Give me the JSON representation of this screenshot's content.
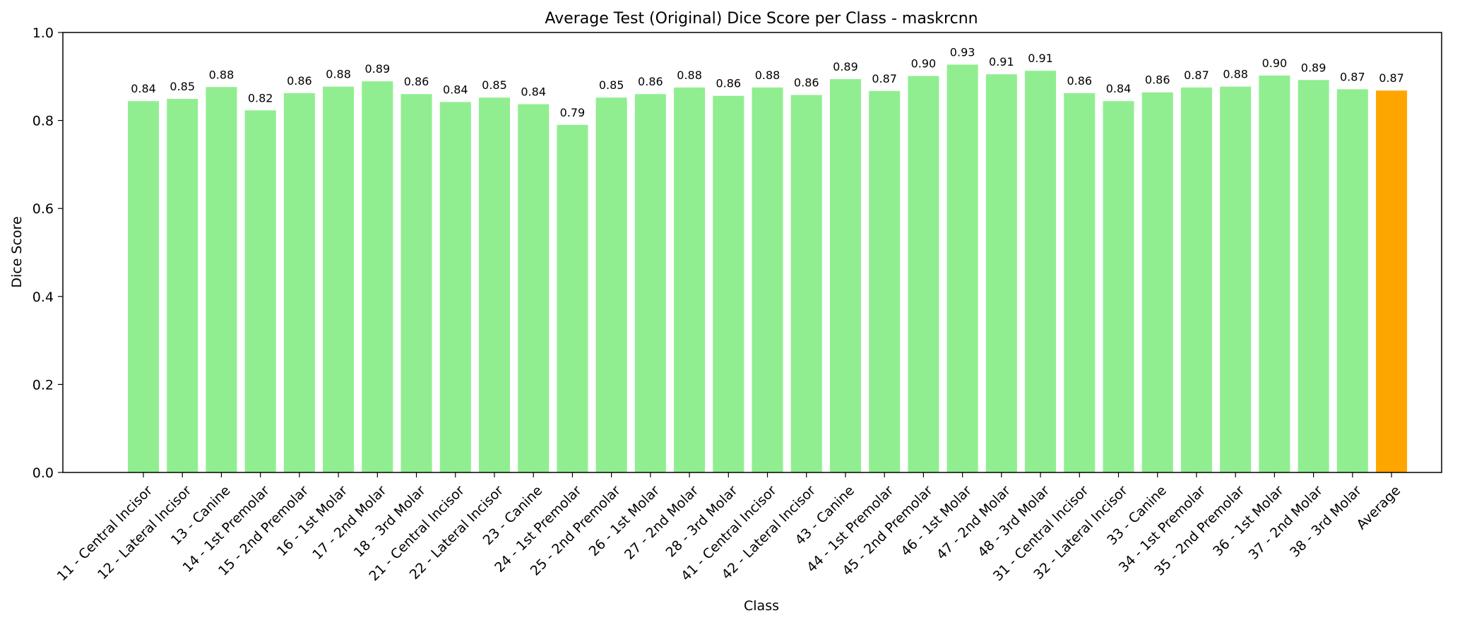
{
  "chart_data": {
    "type": "bar",
    "title": "Average Test (Original) Dice Score per Class - maskrcnn",
    "xlabel": "Class",
    "ylabel": "Dice Score",
    "ylim": [
      0,
      1.0
    ],
    "yticks": [
      "0.0",
      "0.2",
      "0.4",
      "0.6",
      "0.8",
      "1.0"
    ],
    "grid": false,
    "bar_color": "#90ee90",
    "highlight_color": "#ffa500",
    "categories": [
      "11 - Central Incisor",
      "12 - Lateral Incisor",
      "13 - Canine",
      "14 - 1st Premolar",
      "15 - 2nd Premolar",
      "16 - 1st Molar",
      "17 - 2nd Molar",
      "18 - 3rd Molar",
      "21 - Central Incisor",
      "22 - Lateral Incisor",
      "23 - Canine",
      "24 - 1st Premolar",
      "25 - 2nd Premolar",
      "26 - 1st Molar",
      "27 - 2nd Molar",
      "28 - 3rd Molar",
      "41 - Central Incisor",
      "42 - Lateral Incisor",
      "43 - Canine",
      "44 - 1st Premolar",
      "45 - 2nd Premolar",
      "46 - 1st Molar",
      "47 - 2nd Molar",
      "48 - 3rd Molar",
      "31 - Central Incisor",
      "32 - Lateral Incisor",
      "33 - Canine",
      "34 - 1st Premolar",
      "35 - 2nd Premolar",
      "36 - 1st Molar",
      "37 - 2nd Molar",
      "38 - 3rd Molar",
      "Average"
    ],
    "values": [
      0.844,
      0.849,
      0.876,
      0.823,
      0.862,
      0.877,
      0.889,
      0.86,
      0.842,
      0.852,
      0.837,
      0.79,
      0.852,
      0.86,
      0.875,
      0.856,
      0.875,
      0.858,
      0.894,
      0.867,
      0.901,
      0.927,
      0.905,
      0.913,
      0.862,
      0.844,
      0.864,
      0.875,
      0.877,
      0.902,
      0.892,
      0.871,
      0.868
    ],
    "value_labels": [
      "0.84",
      "0.85",
      "0.88",
      "0.82",
      "0.86",
      "0.88",
      "0.89",
      "0.86",
      "0.84",
      "0.85",
      "0.84",
      "0.79",
      "0.85",
      "0.86",
      "0.88",
      "0.86",
      "0.88",
      "0.86",
      "0.89",
      "0.87",
      "0.90",
      "0.93",
      "0.91",
      "0.91",
      "0.86",
      "0.84",
      "0.86",
      "0.87",
      "0.88",
      "0.90",
      "0.89",
      "0.87",
      "0.87"
    ]
  }
}
